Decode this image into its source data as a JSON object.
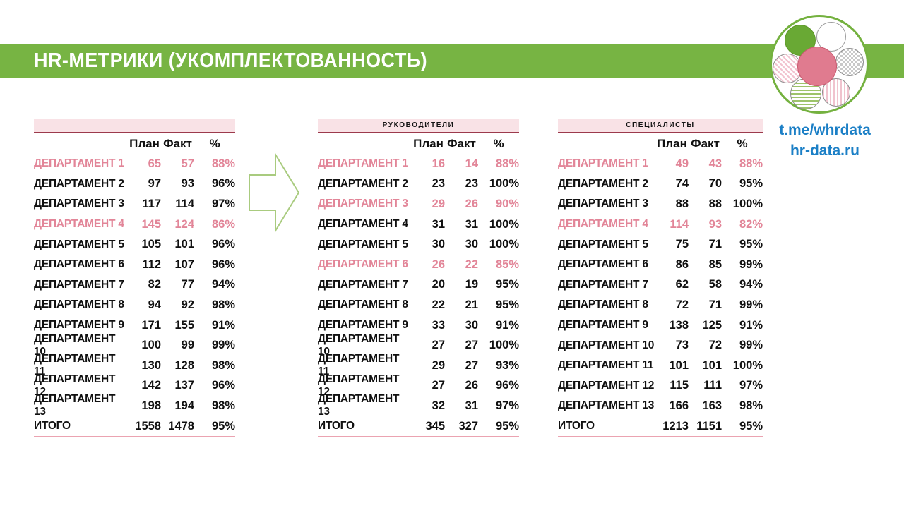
{
  "title": "HR-МЕТРИКИ (УКОМПЛЕКТОВАННОСТЬ)",
  "links": [
    "t.me/whrdata",
    "hr-data.ru"
  ],
  "columns": [
    "План",
    "Факт",
    "%"
  ],
  "colors": {
    "green": "#77b443",
    "pink_highlight_text": "#e28598",
    "band_background": "#f9e2e6",
    "band_underline": "#9c3a4c",
    "total_underline": "#eba3b1",
    "link_blue": "#1b7fc6",
    "logo_center_pink": "#e07b8f",
    "logo_green": "#69a934"
  },
  "tables": [
    {
      "band_label": "",
      "rows": [
        {
          "label": "ДЕПАРТАМЕНТ 1",
          "plan": "65",
          "fact": "57",
          "pct": "88%",
          "highlight": true
        },
        {
          "label": "ДЕПАРТАМЕНТ 2",
          "plan": "97",
          "fact": "93",
          "pct": "96%",
          "highlight": false
        },
        {
          "label": "ДЕПАРТАМЕНТ 3",
          "plan": "117",
          "fact": "114",
          "pct": "97%",
          "highlight": false
        },
        {
          "label": "ДЕПАРТАМЕНТ 4",
          "plan": "145",
          "fact": "124",
          "pct": "86%",
          "highlight": true
        },
        {
          "label": "ДЕПАРТАМЕНТ 5",
          "plan": "105",
          "fact": "101",
          "pct": "96%",
          "highlight": false
        },
        {
          "label": "ДЕПАРТАМЕНТ 6",
          "plan": "112",
          "fact": "107",
          "pct": "96%",
          "highlight": false
        },
        {
          "label": "ДЕПАРТАМЕНТ 7",
          "plan": "82",
          "fact": "77",
          "pct": "94%",
          "highlight": false
        },
        {
          "label": "ДЕПАРТАМЕНТ 8",
          "plan": "94",
          "fact": "92",
          "pct": "98%",
          "highlight": false
        },
        {
          "label": "ДЕПАРТАМЕНТ 9",
          "plan": "171",
          "fact": "155",
          "pct": "91%",
          "highlight": false
        },
        {
          "label": "ДЕПАРТАМЕНТ 10",
          "plan": "100",
          "fact": "99",
          "pct": "99%",
          "highlight": false
        },
        {
          "label": "ДЕПАРТАМЕНТ 11",
          "plan": "130",
          "fact": "128",
          "pct": "98%",
          "highlight": false
        },
        {
          "label": "ДЕПАРТАМЕНТ 12",
          "plan": "142",
          "fact": "137",
          "pct": "96%",
          "highlight": false
        },
        {
          "label": "ДЕПАРТАМЕНТ 13",
          "plan": "198",
          "fact": "194",
          "pct": "98%",
          "highlight": false
        }
      ],
      "total": {
        "label": "ИТОГО",
        "plan": "1558",
        "fact": "1478",
        "pct": "95%"
      }
    },
    {
      "band_label": "РУКОВОДИТЕЛИ",
      "rows": [
        {
          "label": "ДЕПАРТАМЕНТ 1",
          "plan": "16",
          "fact": "14",
          "pct": "88%",
          "highlight": true
        },
        {
          "label": "ДЕПАРТАМЕНТ 2",
          "plan": "23",
          "fact": "23",
          "pct": "100%",
          "highlight": false
        },
        {
          "label": "ДЕПАРТАМЕНТ 3",
          "plan": "29",
          "fact": "26",
          "pct": "90%",
          "highlight": true
        },
        {
          "label": "ДЕПАРТАМЕНТ 4",
          "plan": "31",
          "fact": "31",
          "pct": "100%",
          "highlight": false
        },
        {
          "label": "ДЕПАРТАМЕНТ 5",
          "plan": "30",
          "fact": "30",
          "pct": "100%",
          "highlight": false
        },
        {
          "label": "ДЕПАРТАМЕНТ 6",
          "plan": "26",
          "fact": "22",
          "pct": "85%",
          "highlight": true
        },
        {
          "label": "ДЕПАРТАМЕНТ 7",
          "plan": "20",
          "fact": "19",
          "pct": "95%",
          "highlight": false
        },
        {
          "label": "ДЕПАРТАМЕНТ 8",
          "plan": "22",
          "fact": "21",
          "pct": "95%",
          "highlight": false
        },
        {
          "label": "ДЕПАРТАМЕНТ 9",
          "plan": "33",
          "fact": "30",
          "pct": "91%",
          "highlight": false
        },
        {
          "label": "ДЕПАРТАМЕНТ 10",
          "plan": "27",
          "fact": "27",
          "pct": "100%",
          "highlight": false
        },
        {
          "label": "ДЕПАРТАМЕНТ 11",
          "plan": "29",
          "fact": "27",
          "pct": "93%",
          "highlight": false
        },
        {
          "label": "ДЕПАРТАМЕНТ 12",
          "plan": "27",
          "fact": "26",
          "pct": "96%",
          "highlight": false
        },
        {
          "label": "ДЕПАРТАМЕНТ 13",
          "plan": "32",
          "fact": "31",
          "pct": "97%",
          "highlight": false
        }
      ],
      "total": {
        "label": "ИТОГО",
        "plan": "345",
        "fact": "327",
        "pct": "95%"
      }
    },
    {
      "band_label": "СПЕЦИАЛИСТЫ",
      "rows": [
        {
          "label": "ДЕПАРТАМЕНТ 1",
          "plan": "49",
          "fact": "43",
          "pct": "88%",
          "highlight": true
        },
        {
          "label": "ДЕПАРТАМЕНТ 2",
          "plan": "74",
          "fact": "70",
          "pct": "95%",
          "highlight": false
        },
        {
          "label": "ДЕПАРТАМЕНТ 3",
          "plan": "88",
          "fact": "88",
          "pct": "100%",
          "highlight": false
        },
        {
          "label": "ДЕПАРТАМЕНТ 4",
          "plan": "114",
          "fact": "93",
          "pct": "82%",
          "highlight": true
        },
        {
          "label": "ДЕПАРТАМЕНТ 5",
          "plan": "75",
          "fact": "71",
          "pct": "95%",
          "highlight": false
        },
        {
          "label": "ДЕПАРТАМЕНТ 6",
          "plan": "86",
          "fact": "85",
          "pct": "99%",
          "highlight": false
        },
        {
          "label": "ДЕПАРТАМЕНТ 7",
          "plan": "62",
          "fact": "58",
          "pct": "94%",
          "highlight": false
        },
        {
          "label": "ДЕПАРТАМЕНТ 8",
          "plan": "72",
          "fact": "71",
          "pct": "99%",
          "highlight": false
        },
        {
          "label": "ДЕПАРТАМЕНТ 9",
          "plan": "138",
          "fact": "125",
          "pct": "91%",
          "highlight": false
        },
        {
          "label": "ДЕПАРТАМЕНТ 10",
          "plan": "73",
          "fact": "72",
          "pct": "99%",
          "highlight": false
        },
        {
          "label": "ДЕПАРТАМЕНТ 11",
          "plan": "101",
          "fact": "101",
          "pct": "100%",
          "highlight": false
        },
        {
          "label": "ДЕПАРТАМЕНТ 12",
          "plan": "115",
          "fact": "111",
          "pct": "97%",
          "highlight": false
        },
        {
          "label": "ДЕПАРТАМЕНТ 13",
          "plan": "166",
          "fact": "163",
          "pct": "98%",
          "highlight": false
        }
      ],
      "total": {
        "label": "ИТОГО",
        "plan": "1213",
        "fact": "1151",
        "pct": "95%"
      }
    }
  ]
}
